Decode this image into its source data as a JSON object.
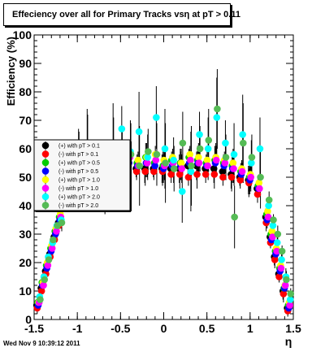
{
  "title": "Effeciency over all for Primary Tracks vsη at pT > 0.11",
  "footer": "Wed Nov  9 10:39:12 2011",
  "chart_data": {
    "type": "scatter",
    "xlabel": "η",
    "ylabel": "Efficiency (%)",
    "xlim": [
      -1.5,
      1.5
    ],
    "ylim": [
      0,
      100
    ],
    "x_ticks": [
      "-1.5",
      "-1",
      "-0.5",
      "0",
      "0.5",
      "1",
      "1.5"
    ],
    "y_ticks": [
      "0",
      "10",
      "20",
      "30",
      "40",
      "50",
      "60",
      "70",
      "80",
      "90",
      "100"
    ],
    "grid": false,
    "legend_position": "center-left",
    "series": [
      {
        "name": "(+) with pT > 0.1",
        "color": "#000000",
        "x": [
          -1.45,
          -1.4,
          -1.35,
          -1.3,
          -1.25,
          -1.2,
          -1.1,
          -1.0,
          -0.9,
          -0.8,
          -0.7,
          -0.6,
          -0.5,
          -0.4,
          -0.3,
          -0.2,
          -0.1,
          0.0,
          0.1,
          0.2,
          0.3,
          0.4,
          0.5,
          0.6,
          0.7,
          0.8,
          0.9,
          1.0,
          1.1,
          1.2,
          1.25,
          1.3,
          1.35,
          1.4,
          1.45
        ],
        "y": [
          5,
          11,
          17,
          23,
          29,
          34,
          46,
          50,
          51,
          52,
          52,
          52,
          52,
          53,
          53,
          53,
          53,
          53,
          53,
          53,
          54,
          54,
          53,
          53,
          52,
          51,
          50,
          49,
          46,
          36,
          29,
          22,
          16,
          10,
          4
        ]
      },
      {
        "name": "(-) with pT > 0.1",
        "color": "#ff0000",
        "x": [
          -1.45,
          -1.4,
          -1.35,
          -1.3,
          -1.25,
          -1.2,
          -1.1,
          -1.0,
          -0.9,
          -0.8,
          -0.7,
          -0.6,
          -0.5,
          -0.4,
          -0.3,
          -0.2,
          -0.1,
          0.0,
          0.1,
          0.2,
          0.3,
          0.4,
          0.5,
          0.6,
          0.7,
          0.8,
          0.9,
          1.0,
          1.1,
          1.2,
          1.25,
          1.3,
          1.35,
          1.4,
          1.45
        ],
        "y": [
          4,
          10,
          16,
          22,
          28,
          33,
          45,
          49,
          50,
          51,
          51,
          51,
          51,
          51,
          52,
          52,
          52,
          52,
          51,
          51,
          50,
          51,
          51,
          51,
          50,
          50,
          49,
          48,
          44,
          34,
          27,
          21,
          15,
          9,
          3
        ]
      },
      {
        "name": "(+) with pT > 0.5",
        "color": "#00cc00",
        "x": [
          -1.45,
          -1.4,
          -1.35,
          -1.3,
          -1.25,
          -1.2,
          -1.1,
          -1.0,
          -0.9,
          -0.8,
          -0.7,
          -0.6,
          -0.5,
          -0.4,
          -0.3,
          -0.2,
          -0.1,
          0.0,
          0.1,
          0.2,
          0.3,
          0.4,
          0.5,
          0.6,
          0.7,
          0.8,
          0.9,
          1.0,
          1.1,
          1.2,
          1.25,
          1.3,
          1.35,
          1.4,
          1.45
        ],
        "y": [
          6,
          13,
          19,
          25,
          31,
          36,
          48,
          53,
          56,
          57,
          55,
          56,
          58,
          56,
          55,
          57,
          55,
          54,
          56,
          55,
          57,
          56,
          55,
          56,
          55,
          54,
          52,
          50,
          47,
          37,
          30,
          24,
          18,
          11,
          5
        ]
      },
      {
        "name": "(-) with pT > 0.5",
        "color": "#0000ff",
        "x": [
          -1.45,
          -1.4,
          -1.35,
          -1.3,
          -1.25,
          -1.2,
          -1.1,
          -1.0,
          -0.9,
          -0.8,
          -0.7,
          -0.6,
          -0.5,
          -0.4,
          -0.3,
          -0.2,
          -0.1,
          0.0,
          0.1,
          0.2,
          0.3,
          0.4,
          0.5,
          0.6,
          0.7,
          0.8,
          0.9,
          1.0,
          1.1,
          1.2,
          1.25,
          1.3,
          1.35,
          1.4,
          1.45
        ],
        "y": [
          5,
          12,
          18,
          24,
          30,
          35,
          47,
          52,
          54,
          55,
          54,
          54,
          55,
          55,
          54,
          55,
          54,
          53,
          54,
          54,
          55,
          55,
          54,
          55,
          54,
          53,
          51,
          49,
          46,
          35,
          28,
          23,
          17,
          11,
          4
        ]
      },
      {
        "name": "(+) with pT > 1.0",
        "color": "#ffff00",
        "x": [
          -1.45,
          -1.4,
          -1.35,
          -1.3,
          -1.25,
          -1.2,
          -1.1,
          -1.0,
          -0.9,
          -0.8,
          -0.7,
          -0.6,
          -0.5,
          -0.4,
          -0.3,
          -0.2,
          -0.1,
          0.0,
          0.1,
          0.2,
          0.3,
          0.4,
          0.5,
          0.6,
          0.7,
          0.8,
          0.9,
          1.0,
          1.1,
          1.2,
          1.25,
          1.3,
          1.35,
          1.4,
          1.45
        ],
        "y": [
          6,
          13,
          20,
          26,
          32,
          37,
          49,
          54,
          56,
          58,
          57,
          56,
          57,
          58,
          56,
          57,
          58,
          56,
          57,
          55,
          58,
          57,
          56,
          57,
          56,
          55,
          53,
          51,
          48,
          38,
          31,
          25,
          19,
          12,
          6
        ]
      },
      {
        "name": "(-) with pT > 1.0",
        "color": "#ff00ff",
        "x": [
          -1.45,
          -1.4,
          -1.35,
          -1.3,
          -1.25,
          -1.2,
          -1.1,
          -1.0,
          -0.9,
          -0.8,
          -0.7,
          -0.6,
          -0.5,
          -0.4,
          -0.3,
          -0.2,
          -0.1,
          0.0,
          0.1,
          0.2,
          0.3,
          0.4,
          0.5,
          0.6,
          0.7,
          0.8,
          0.9,
          1.0,
          1.1,
          1.2,
          1.25,
          1.3,
          1.35,
          1.4,
          1.45
        ],
        "y": [
          6,
          12,
          19,
          25,
          31,
          36,
          47,
          52,
          55,
          56,
          55,
          53,
          56,
          57,
          54,
          55,
          56,
          54,
          55,
          53,
          56,
          55,
          54,
          56,
          55,
          53,
          52,
          50,
          46,
          36,
          29,
          24,
          18,
          12,
          5
        ]
      },
      {
        "name": "(+) with pT > 2.0",
        "color": "#00ffff",
        "x": [
          -1.45,
          -1.4,
          -1.35,
          -1.3,
          -1.25,
          -1.2,
          -1.1,
          -1.0,
          -0.9,
          -0.8,
          -0.7,
          -0.6,
          -0.5,
          -0.4,
          -0.3,
          -0.2,
          -0.1,
          0.0,
          0.1,
          0.2,
          0.3,
          0.4,
          0.5,
          0.6,
          0.7,
          0.8,
          0.9,
          1.0,
          1.1,
          1.2,
          1.25,
          1.3,
          1.35,
          1.4,
          1.45
        ],
        "y": [
          8,
          15,
          22,
          27,
          33,
          35,
          50,
          56,
          60,
          54,
          49,
          62,
          67,
          59,
          66,
          57,
          71,
          60,
          56,
          45,
          52,
          65,
          60,
          71,
          62,
          58,
          65,
          55,
          60,
          40,
          33,
          27,
          21,
          15,
          7
        ]
      },
      {
        "name": "(-) with pT > 2.0",
        "color": "#55bb55",
        "x": [
          -1.45,
          -1.4,
          -1.35,
          -1.3,
          -1.25,
          -1.2,
          -1.1,
          -1.0,
          -0.9,
          -0.8,
          -0.7,
          -0.6,
          -0.5,
          -0.4,
          -0.3,
          -0.2,
          -0.1,
          0.0,
          0.1,
          0.2,
          0.3,
          0.4,
          0.5,
          0.6,
          0.7,
          0.8,
          0.9,
          1.0,
          1.1,
          1.2,
          1.25,
          1.3,
          1.35,
          1.4,
          1.45
        ],
        "y": [
          7,
          14,
          21,
          28,
          33,
          34,
          52,
          55,
          58,
          51,
          48,
          57,
          60,
          58,
          54,
          59,
          58,
          55,
          53,
          62,
          54,
          60,
          63,
          74,
          57,
          36,
          62,
          57,
          50,
          42,
          35,
          30,
          24,
          14,
          9
        ]
      }
    ]
  }
}
